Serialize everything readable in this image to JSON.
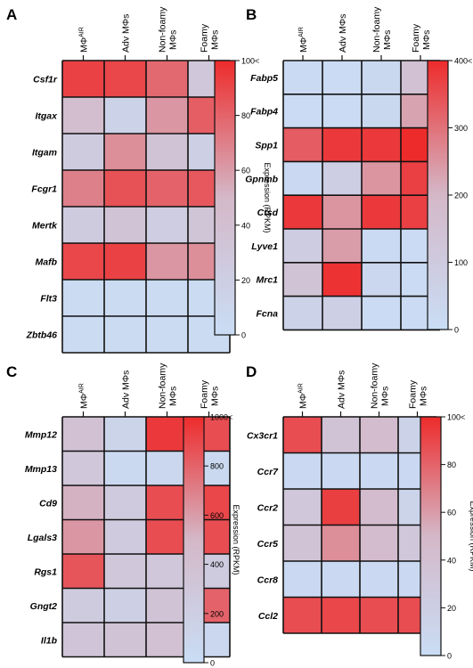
{
  "colors": {
    "low": "#c9ddf5",
    "mid": "#d4b8c8",
    "high": "#ee2b2b",
    "grid": "#111111"
  },
  "chart_data": [
    {
      "type": "heatmap",
      "panel_label": "A",
      "columns": [
        [
          "MΦ",
          "AIR"
        ],
        [
          "Adv  MΦs"
        ],
        [
          "Non-foamy",
          "MΦs"
        ],
        [
          "Foamy",
          "MΦs"
        ]
      ],
      "rows": [
        "Csf1r",
        "Itgax",
        "Itgam",
        "Fcgr1",
        "Mertk",
        "Mafb",
        "Flt3",
        "Zbtb46"
      ],
      "values": [
        [
          92,
          90,
          78,
          30
        ],
        [
          42,
          15,
          62,
          82
        ],
        [
          25,
          65,
          35,
          18
        ],
        [
          70,
          86,
          80,
          84
        ],
        [
          25,
          35,
          22,
          33
        ],
        [
          90,
          92,
          62,
          65
        ],
        [
          3,
          3,
          3,
          3
        ],
        [
          3,
          3,
          3,
          3
        ]
      ],
      "colorbar": {
        "min": 0,
        "max": 100,
        "ticks": [
          "0",
          "20",
          "40",
          "60",
          "80",
          "100<"
        ],
        "label": "Expression (RPKM)"
      }
    },
    {
      "type": "heatmap",
      "panel_label": "B",
      "columns": [
        [
          "MΦ",
          "AIR"
        ],
        [
          "Adv  MΦs"
        ],
        [
          "Non-foamy",
          "MΦs"
        ],
        [
          "Foamy",
          "MΦs"
        ]
      ],
      "rows": [
        "Fabp5",
        "Fabp4",
        "Spp1",
        "Gpnmb",
        "Ctsd",
        "Lyve1",
        "Mrc1",
        "Fcna"
      ],
      "values": [
        [
          15,
          10,
          25,
          150
        ],
        [
          10,
          10,
          25,
          230
        ],
        [
          330,
          380,
          380,
          400
        ],
        [
          20,
          80,
          250,
          370
        ],
        [
          380,
          250,
          380,
          370
        ],
        [
          90,
          240,
          15,
          10
        ],
        [
          140,
          390,
          30,
          10
        ],
        [
          60,
          70,
          10,
          10
        ]
      ],
      "colorbar": {
        "min": 0,
        "max": 400,
        "ticks": [
          "0",
          "100",
          "200",
          "300",
          "400<"
        ],
        "label": "Expression (RPKM)"
      }
    },
    {
      "type": "heatmap",
      "panel_label": "C",
      "columns": [
        [
          "MΦ",
          "AIR"
        ],
        [
          "Adv  MΦs"
        ],
        [
          "Non-foamy",
          "MΦs"
        ],
        [
          "Foamy",
          "MΦs"
        ]
      ],
      "rows": [
        "Mmp12",
        "Mmp13",
        "Cd9",
        "Lgals3",
        "Rgs1",
        "Gngt2",
        "Il1b"
      ],
      "values": [
        [
          380,
          120,
          950,
          880
        ],
        [
          300,
          60,
          80,
          60
        ],
        [
          520,
          260,
          880,
          900
        ],
        [
          620,
          260,
          880,
          880
        ],
        [
          850,
          300,
          300,
          250
        ],
        [
          250,
          190,
          350,
          800
        ],
        [
          320,
          350,
          380,
          80
        ]
      ],
      "colorbar": {
        "min": 0,
        "max": 1000,
        "ticks": [
          "0",
          "200",
          "400",
          "600",
          "800",
          "1000<"
        ],
        "label": "Expression (RPKM)"
      }
    },
    {
      "type": "heatmap",
      "panel_label": "D",
      "columns": [
        [
          "MΦ",
          "AIR"
        ],
        [
          "Adv  MΦs"
        ],
        [
          "Non-foamy",
          "MΦs"
        ],
        [
          "Foamy",
          "MΦs"
        ]
      ],
      "rows": [
        "Cx3cr1",
        "Ccr7",
        "Ccr2",
        "Ccr5",
        "Ccr8",
        "Ccl2"
      ],
      "values": [
        [
          88,
          35,
          45,
          15
        ],
        [
          5,
          5,
          5,
          5
        ],
        [
          30,
          93,
          45,
          12
        ],
        [
          35,
          65,
          45,
          30
        ],
        [
          5,
          5,
          5,
          5
        ],
        [
          88,
          90,
          88,
          88
        ]
      ],
      "colorbar": {
        "min": 0,
        "max": 100,
        "ticks": [
          "0",
          "20",
          "40",
          "60",
          "80",
          "100<"
        ],
        "label": "Expression (RPKM)"
      }
    }
  ]
}
